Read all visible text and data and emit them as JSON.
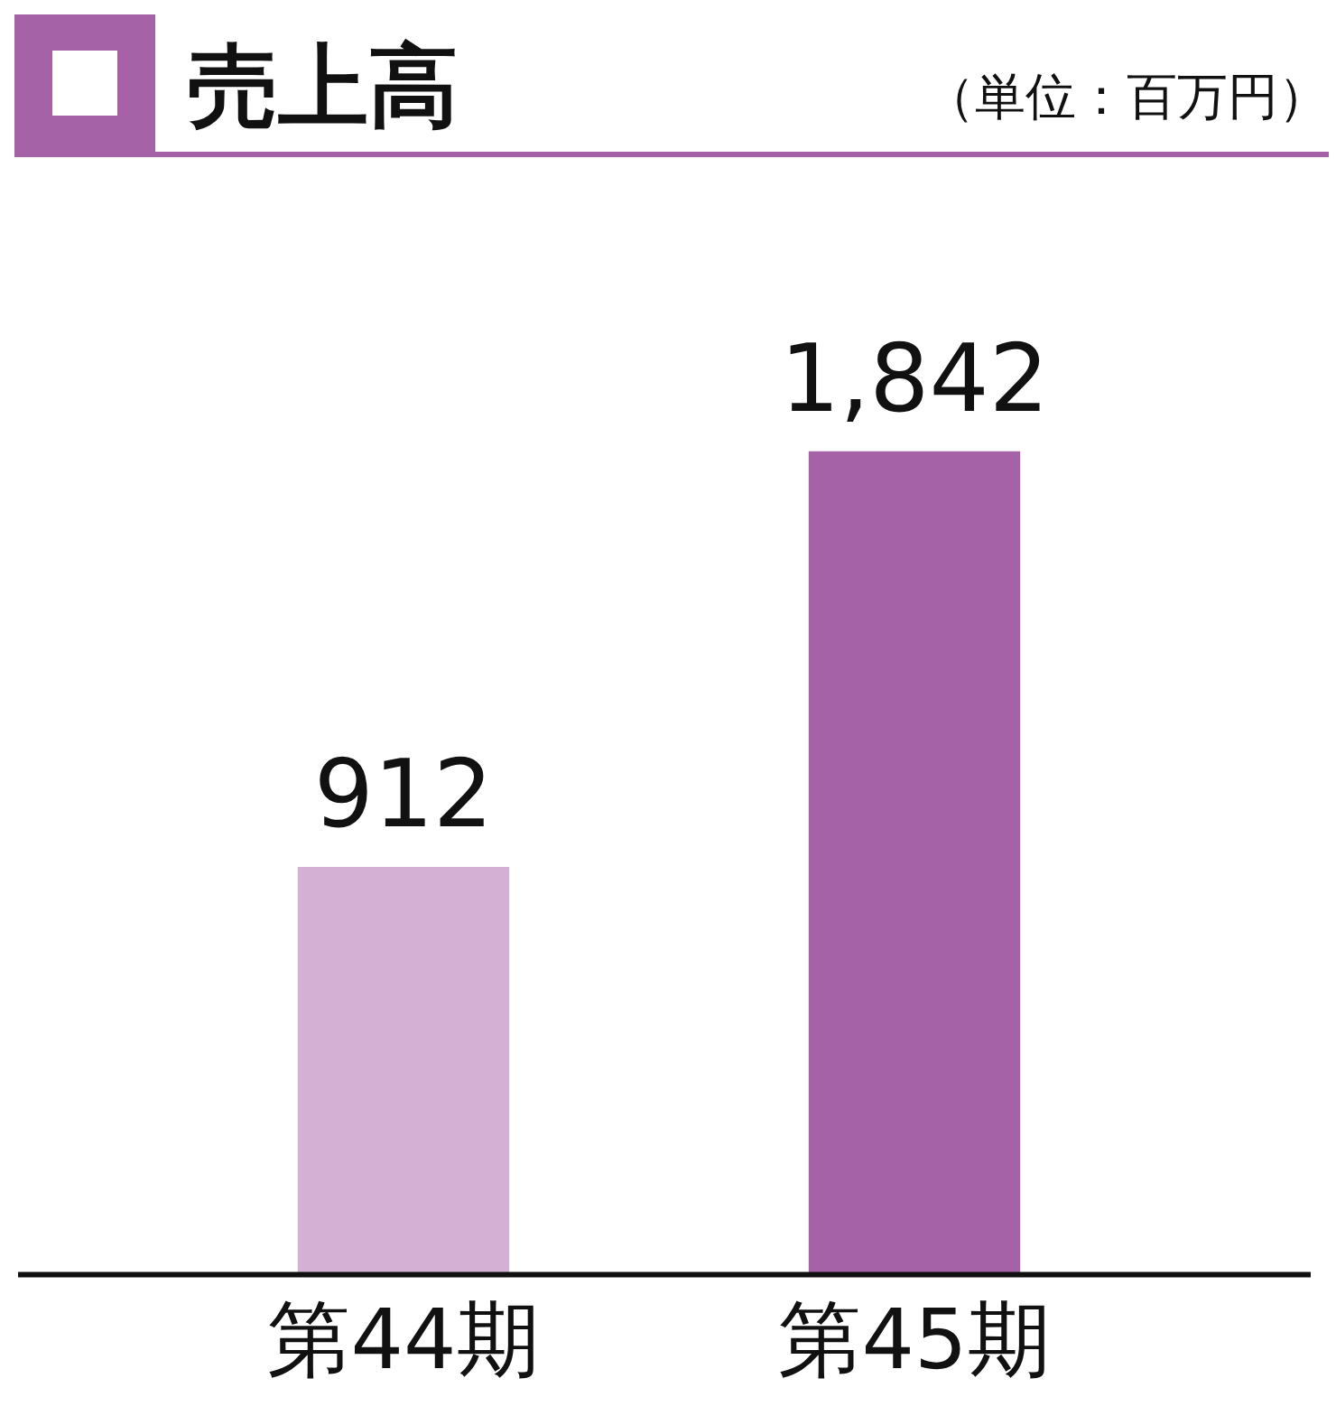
{
  "chart_data": {
    "type": "bar",
    "title": "売上高",
    "subtitle": "（単位：百万円）",
    "categories": [
      "第44期",
      "第45期"
    ],
    "values": [
      912,
      1842
    ],
    "colors": [
      "#d4b0d4",
      "#a662a6"
    ],
    "value_labels": [
      "912",
      "1,842"
    ]
  }
}
